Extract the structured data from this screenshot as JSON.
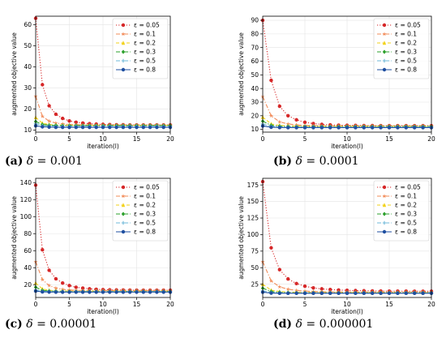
{
  "captions": [
    {
      "label": "(a)",
      "delta": "δ",
      "eq": " = 0.001"
    },
    {
      "label": "(b)",
      "delta": "δ",
      "eq": " = 0.0001"
    },
    {
      "label": "(c)",
      "delta": "δ",
      "eq": " = 0.00001"
    },
    {
      "label": "(d)",
      "delta": "δ",
      "eq": " = 0.000001"
    }
  ],
  "chart_data": [
    {
      "type": "line",
      "xlabel": "iteration(l)",
      "ylabel": "augmented objective value",
      "xlim": [
        0,
        20
      ],
      "ylim": [
        9,
        64
      ],
      "xticks": [
        0,
        5,
        10,
        15,
        20
      ],
      "yticks": [
        10,
        20,
        30,
        40,
        50,
        60
      ],
      "grid": true,
      "legend_position": "top-right",
      "x": [
        0,
        1,
        2,
        3,
        4,
        5,
        6,
        7,
        8,
        9,
        10,
        11,
        12,
        13,
        14,
        15,
        16,
        17,
        18,
        19,
        20
      ],
      "series": [
        {
          "name": "ε = 0.05",
          "color": "#d62728",
          "dash": "dotted",
          "marker": "circle",
          "values": [
            63,
            31.5,
            21.5,
            17.5,
            15.5,
            14.3,
            13.7,
            13.3,
            13.0,
            12.8,
            12.7,
            12.6,
            12.5,
            12.5,
            12.4,
            12.4,
            12.4,
            12.4,
            12.4,
            12.4,
            12.4
          ]
        },
        {
          "name": "ε = 0.1",
          "color": "#f28c5a",
          "dash": "dashdot",
          "marker": "star",
          "values": [
            26,
            16.5,
            14.2,
            13.3,
            12.9,
            12.6,
            12.5,
            12.4,
            12.4,
            12.3,
            12.3,
            12.3,
            12.3,
            12.3,
            12.3,
            12.3,
            12.3,
            12.3,
            12.3,
            12.3,
            12.3
          ]
        },
        {
          "name": "ε = 0.2",
          "color": "#f2d21b",
          "dash": "dashed",
          "marker": "triangle",
          "values": [
            16,
            13.2,
            12.6,
            12.4,
            12.3,
            12.2,
            12.2,
            12.2,
            12.2,
            12.2,
            12.2,
            12.2,
            12.2,
            12.2,
            12.2,
            12.2,
            12.2,
            12.2,
            12.2,
            12.2,
            12.2
          ]
        },
        {
          "name": "ε = 0.3",
          "color": "#2ca02c",
          "dash": "dashdot",
          "marker": "diamond",
          "values": [
            14,
            12.6,
            12.3,
            12.2,
            12.1,
            12.1,
            12.1,
            12.1,
            12.1,
            12.1,
            12.1,
            12.1,
            12.1,
            12.1,
            12.1,
            12.1,
            12.1,
            12.1,
            12.1,
            12.1,
            12.1
          ]
        },
        {
          "name": "ε = 0.5",
          "color": "#6fb8d8",
          "dash": "dashdot",
          "marker": "plus",
          "values": [
            13,
            12.1,
            11.9,
            11.8,
            11.8,
            11.8,
            11.8,
            11.8,
            11.8,
            11.8,
            11.8,
            11.8,
            11.8,
            11.8,
            11.8,
            11.8,
            11.8,
            11.8,
            11.8,
            11.8,
            11.8
          ]
        },
        {
          "name": "ε = 0.8",
          "color": "#1f4fa0",
          "dash": "solid",
          "marker": "circle",
          "values": [
            12,
            11.5,
            11.4,
            11.3,
            11.3,
            11.3,
            11.3,
            11.3,
            11.3,
            11.3,
            11.3,
            11.3,
            11.3,
            11.3,
            11.3,
            11.3,
            11.3,
            11.3,
            11.3,
            11.3,
            11.3
          ]
        }
      ]
    },
    {
      "type": "line",
      "xlabel": "iteration(l)",
      "ylabel": "augmented objective value",
      "xlim": [
        0,
        20
      ],
      "ylim": [
        8,
        93
      ],
      "xticks": [
        0,
        5,
        10,
        15,
        20
      ],
      "yticks": [
        10,
        20,
        30,
        40,
        50,
        60,
        70,
        80,
        90
      ],
      "grid": true,
      "legend_position": "top-right",
      "x": [
        0,
        1,
        2,
        3,
        4,
        5,
        6,
        7,
        8,
        9,
        10,
        11,
        12,
        13,
        14,
        15,
        16,
        17,
        18,
        19,
        20
      ],
      "series": [
        {
          "name": "ε = 0.05",
          "color": "#d62728",
          "dash": "dotted",
          "marker": "circle",
          "values": [
            90,
            46,
            27,
            20,
            17,
            15.2,
            14.3,
            13.7,
            13.3,
            13.1,
            13.0,
            12.9,
            12.8,
            12.8,
            12.7,
            12.7,
            12.7,
            12.7,
            12.7,
            12.7,
            12.7
          ]
        },
        {
          "name": "ε = 0.1",
          "color": "#f28c5a",
          "dash": "dashdot",
          "marker": "star",
          "values": [
            34,
            20,
            15.5,
            14,
            13.3,
            12.9,
            12.7,
            12.6,
            12.5,
            12.5,
            12.5,
            12.5,
            12.5,
            12.5,
            12.5,
            12.5,
            12.5,
            12.5,
            12.5,
            12.5,
            12.5
          ]
        },
        {
          "name": "ε = 0.2",
          "color": "#f2d21b",
          "dash": "dashed",
          "marker": "triangle",
          "values": [
            19,
            14,
            12.9,
            12.6,
            12.4,
            12.3,
            12.3,
            12.3,
            12.3,
            12.3,
            12.3,
            12.3,
            12.3,
            12.3,
            12.3,
            12.3,
            12.3,
            12.3,
            12.3,
            12.3,
            12.3
          ]
        },
        {
          "name": "ε = 0.3",
          "color": "#2ca02c",
          "dash": "dashdot",
          "marker": "diamond",
          "values": [
            16,
            13,
            12.4,
            12.2,
            12.1,
            12.1,
            12.1,
            12.1,
            12.1,
            12.1,
            12.1,
            12.1,
            12.1,
            12.1,
            12.1,
            12.1,
            12.1,
            12.1,
            12.1,
            12.1,
            12.1
          ]
        },
        {
          "name": "ε = 0.5",
          "color": "#6fb8d8",
          "dash": "dashdot",
          "marker": "plus",
          "values": [
            14,
            12.3,
            11.9,
            11.8,
            11.8,
            11.8,
            11.8,
            11.8,
            11.8,
            11.8,
            11.8,
            11.8,
            11.8,
            11.8,
            11.8,
            11.8,
            11.8,
            11.8,
            11.8,
            11.8,
            11.8
          ]
        },
        {
          "name": "ε = 0.8",
          "color": "#1f4fa0",
          "dash": "solid",
          "marker": "circle",
          "values": [
            12.5,
            11.6,
            11.4,
            11.3,
            11.3,
            11.3,
            11.3,
            11.3,
            11.3,
            11.3,
            11.3,
            11.3,
            11.3,
            11.3,
            11.3,
            11.3,
            11.3,
            11.3,
            11.3,
            11.3,
            11.3
          ]
        }
      ]
    },
    {
      "type": "line",
      "xlabel": "iteration(l)",
      "ylabel": "augmented objective value",
      "xlim": [
        0,
        20
      ],
      "ylim": [
        5,
        145
      ],
      "xticks": [
        0,
        5,
        10,
        15,
        20
      ],
      "yticks": [
        20,
        40,
        60,
        80,
        100,
        120,
        140
      ],
      "grid": true,
      "legend_position": "top-right",
      "x": [
        0,
        1,
        2,
        3,
        4,
        5,
        6,
        7,
        8,
        9,
        10,
        11,
        12,
        13,
        14,
        15,
        16,
        17,
        18,
        19,
        20
      ],
      "series": [
        {
          "name": "ε = 0.05",
          "color": "#d62728",
          "dash": "dotted",
          "marker": "circle",
          "values": [
            137,
            61,
            37,
            27,
            22,
            19,
            17,
            16,
            15.2,
            14.6,
            14.2,
            14,
            13.8,
            13.7,
            13.6,
            13.5,
            13.5,
            13.5,
            13.5,
            13.5,
            13.5
          ]
        },
        {
          "name": "ε = 0.1",
          "color": "#f28c5a",
          "dash": "dashdot",
          "marker": "star",
          "values": [
            47,
            26,
            19,
            16,
            14.5,
            13.8,
            13.4,
            13.2,
            13.1,
            13.0,
            13.0,
            13.0,
            13.0,
            13.0,
            13.0,
            13.0,
            13.0,
            13.0,
            13.0,
            13.0,
            13.0
          ]
        },
        {
          "name": "ε = 0.2",
          "color": "#f2d21b",
          "dash": "dashed",
          "marker": "triangle",
          "values": [
            22,
            15,
            13.5,
            12.9,
            12.6,
            12.5,
            12.4,
            12.4,
            12.4,
            12.4,
            12.4,
            12.4,
            12.4,
            12.4,
            12.4,
            12.4,
            12.4,
            12.4,
            12.4,
            12.4,
            12.4
          ]
        },
        {
          "name": "ε = 0.3",
          "color": "#2ca02c",
          "dash": "dashdot",
          "marker": "diamond",
          "values": [
            17,
            13.4,
            12.6,
            12.3,
            12.2,
            12.1,
            12.1,
            12.1,
            12.1,
            12.1,
            12.1,
            12.1,
            12.1,
            12.1,
            12.1,
            12.1,
            12.1,
            12.1,
            12.1,
            12.1,
            12.1
          ]
        },
        {
          "name": "ε = 0.5",
          "color": "#6fb8d8",
          "dash": "dashdot",
          "marker": "plus",
          "values": [
            14,
            12.3,
            11.9,
            11.8,
            11.8,
            11.8,
            11.8,
            11.8,
            11.8,
            11.8,
            11.8,
            11.8,
            11.8,
            11.8,
            11.8,
            11.8,
            11.8,
            11.8,
            11.8,
            11.8,
            11.8
          ]
        },
        {
          "name": "ε = 0.8",
          "color": "#1f4fa0",
          "dash": "solid",
          "marker": "circle",
          "values": [
            12.5,
            11.6,
            11.4,
            11.3,
            11.3,
            11.3,
            11.3,
            11.3,
            11.3,
            11.3,
            11.3,
            11.3,
            11.3,
            11.3,
            11.3,
            11.3,
            11.3,
            11.3,
            11.3,
            11.3,
            11.3
          ]
        }
      ]
    },
    {
      "type": "line",
      "xlabel": "iteration(l)",
      "ylabel": "augmented objective value",
      "xlim": [
        0,
        20
      ],
      "ylim": [
        5,
        185
      ],
      "xticks": [
        0,
        5,
        10,
        15,
        20
      ],
      "yticks": [
        25,
        50,
        75,
        100,
        125,
        150,
        175
      ],
      "grid": true,
      "legend_position": "top-right",
      "x": [
        0,
        1,
        2,
        3,
        4,
        5,
        6,
        7,
        8,
        9,
        10,
        11,
        12,
        13,
        14,
        15,
        16,
        17,
        18,
        19,
        20
      ],
      "series": [
        {
          "name": "ε = 0.05",
          "color": "#d62728",
          "dash": "dotted",
          "marker": "circle",
          "values": [
            180,
            80,
            47,
            33,
            26,
            22,
            19.5,
            18,
            17,
            16.3,
            15.8,
            15.4,
            15.1,
            14.9,
            14.7,
            14.6,
            14.5,
            14.5,
            14.4,
            14.4,
            14.4
          ]
        },
        {
          "name": "ε = 0.1",
          "color": "#f28c5a",
          "dash": "dashdot",
          "marker": "star",
          "values": [
            59,
            30,
            21,
            17.5,
            15.6,
            14.6,
            14.0,
            13.6,
            13.4,
            13.3,
            13.2,
            13.2,
            13.2,
            13.2,
            13.2,
            13.2,
            13.2,
            13.2,
            13.2,
            13.2,
            13.2
          ]
        },
        {
          "name": "ε = 0.2",
          "color": "#f2d21b",
          "dash": "dashed",
          "marker": "triangle",
          "values": [
            25,
            16,
            14,
            13.2,
            12.8,
            12.6,
            12.5,
            12.5,
            12.5,
            12.5,
            12.5,
            12.5,
            12.5,
            12.5,
            12.5,
            12.5,
            12.5,
            12.5,
            12.5,
            12.5,
            12.5
          ]
        },
        {
          "name": "ε = 0.3",
          "color": "#2ca02c",
          "dash": "dashdot",
          "marker": "diamond",
          "values": [
            19,
            14,
            12.8,
            12.4,
            12.2,
            12.2,
            12.2,
            12.2,
            12.2,
            12.2,
            12.2,
            12.2,
            12.2,
            12.2,
            12.2,
            12.2,
            12.2,
            12.2,
            12.2,
            12.2,
            12.2
          ]
        },
        {
          "name": "ε = 0.5",
          "color": "#6fb8d8",
          "dash": "dashdot",
          "marker": "plus",
          "values": [
            15,
            12.5,
            12.0,
            11.8,
            11.8,
            11.8,
            11.8,
            11.8,
            11.8,
            11.8,
            11.8,
            11.8,
            11.8,
            11.8,
            11.8,
            11.8,
            11.8,
            11.8,
            11.8,
            11.8,
            11.8
          ]
        },
        {
          "name": "ε = 0.8",
          "color": "#1f4fa0",
          "dash": "solid",
          "marker": "circle",
          "values": [
            13,
            11.7,
            11.4,
            11.3,
            11.3,
            11.3,
            11.3,
            11.3,
            11.3,
            11.3,
            11.3,
            11.3,
            11.3,
            11.3,
            11.3,
            11.3,
            11.3,
            11.3,
            11.3,
            11.3,
            11.3
          ]
        }
      ]
    }
  ]
}
